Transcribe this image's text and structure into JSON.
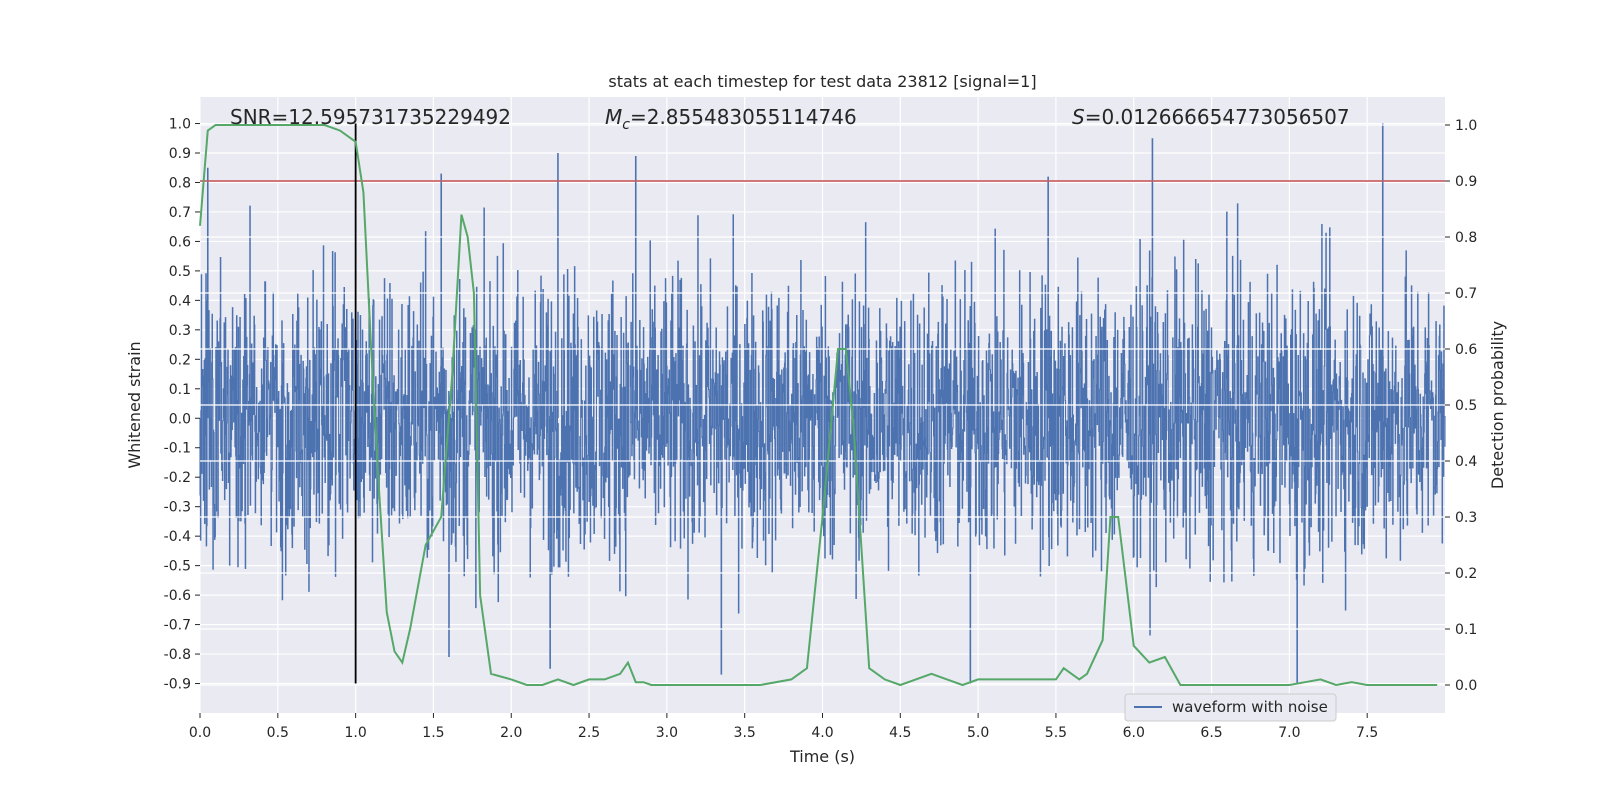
{
  "chart_data": {
    "type": "line",
    "title": "stats at each timestep for test data 23812 [signal=1]",
    "xlabel": "Time (s)",
    "ylabel_left": "Whitened strain",
    "ylabel_right": "Detection probability",
    "xlim": [
      0,
      8.0
    ],
    "ylim_left": [
      -1.0,
      1.09
    ],
    "ylim_right": [
      -0.05,
      1.05
    ],
    "x_ticks": [
      0.0,
      0.5,
      1.0,
      1.5,
      2.0,
      2.5,
      3.0,
      3.5,
      4.0,
      4.5,
      5.0,
      5.5,
      6.0,
      6.5,
      7.0,
      7.5
    ],
    "x_tick_labels": [
      "0.0",
      "0.5",
      "1.0",
      "1.5",
      "2.0",
      "2.5",
      "3.0",
      "3.5",
      "4.0",
      "4.5",
      "5.0",
      "5.5",
      "6.0",
      "6.5",
      "7.0",
      "7.5"
    ],
    "y_left_ticks": [
      1.0,
      0.9,
      0.8,
      0.7,
      0.6,
      0.5,
      0.4,
      0.3,
      0.2,
      0.1,
      0.0,
      -0.1,
      -0.2,
      -0.3,
      -0.4,
      -0.5,
      -0.6,
      -0.7,
      -0.8,
      -0.9
    ],
    "y_left_tick_labels": [
      "1.0",
      "0.9",
      "0.8",
      "0.7",
      "0.6",
      "0.5",
      "0.4",
      "0.3",
      "0.2",
      "0.1",
      "0.0",
      "-0.1",
      "-0.2",
      "-0.3",
      "-0.4",
      "-0.5",
      "-0.6",
      "-0.7",
      "-0.8",
      "-0.9"
    ],
    "y_right_ticks": [
      1.0,
      0.9,
      0.8,
      0.7,
      0.6,
      0.5,
      0.4,
      0.3,
      0.2,
      0.1,
      0.0
    ],
    "y_right_tick_labels": [
      "1.0",
      "0.9",
      "0.8",
      "0.7",
      "0.6",
      "0.5",
      "0.4",
      "0.3",
      "0.2",
      "0.1",
      "0.0"
    ],
    "annotations": {
      "snr": "SNR=12.595731735229492",
      "mc_symbol": "M",
      "mc_sub": "c",
      "mc_value": "=2.855483055114746",
      "s_symbol": "S",
      "s_value": "=0.012666654773056507"
    },
    "threshold": {
      "axis": "right",
      "value": 0.9,
      "color": "#c44e52"
    },
    "marker_line": {
      "x": 1.0,
      "y_from": -0.9,
      "y_to": 1.0,
      "color": "#000000"
    },
    "legend": {
      "label": "waveform with noise",
      "position": "lower-right"
    },
    "series": [
      {
        "name": "waveform with noise",
        "axis": "left",
        "color": "#4c72b0",
        "kind": "noise",
        "typical_amplitude": [
          -0.45,
          0.45
        ],
        "extremes": [
          {
            "x": 0.05,
            "y": 0.85
          },
          {
            "x": 1.55,
            "y": 0.83
          },
          {
            "x": 2.3,
            "y": 0.9
          },
          {
            "x": 2.8,
            "y": 0.89
          },
          {
            "x": 5.45,
            "y": 0.82
          },
          {
            "x": 6.12,
            "y": 0.95
          },
          {
            "x": 7.6,
            "y": 1.0
          },
          {
            "x": 1.6,
            "y": -0.81
          },
          {
            "x": 3.35,
            "y": -0.87
          },
          {
            "x": 4.95,
            "y": -0.9
          },
          {
            "x": 7.05,
            "y": -0.9
          },
          {
            "x": 2.25,
            "y": -0.85
          }
        ]
      },
      {
        "name": "Detection probability",
        "axis": "right",
        "color": "#55a868",
        "x": [
          0.0,
          0.05,
          0.1,
          0.2,
          0.3,
          0.4,
          0.5,
          0.6,
          0.7,
          0.8,
          0.9,
          0.95,
          1.0,
          1.05,
          1.1,
          1.15,
          1.2,
          1.25,
          1.3,
          1.35,
          1.45,
          1.55,
          1.62,
          1.68,
          1.72,
          1.76,
          1.8,
          1.87,
          2.0,
          2.1,
          2.2,
          2.3,
          2.4,
          2.5,
          2.6,
          2.7,
          2.75,
          2.8,
          2.85,
          2.9,
          3.0,
          3.2,
          3.4,
          3.6,
          3.8,
          3.9,
          4.0,
          4.05,
          4.1,
          4.15,
          4.2,
          4.3,
          4.4,
          4.5,
          4.6,
          4.7,
          4.8,
          4.9,
          5.0,
          5.2,
          5.4,
          5.5,
          5.55,
          5.6,
          5.65,
          5.7,
          5.8,
          5.85,
          5.9,
          6.0,
          6.1,
          6.2,
          6.3,
          6.4,
          6.6,
          6.8,
          7.0,
          7.1,
          7.2,
          7.3,
          7.4,
          7.5,
          7.6,
          7.8,
          7.95
        ],
        "values": [
          0.82,
          0.99,
          1.0,
          1.0,
          1.0,
          1.0,
          1.0,
          1.0,
          1.0,
          1.0,
          0.99,
          0.98,
          0.97,
          0.88,
          0.6,
          0.35,
          0.13,
          0.06,
          0.04,
          0.1,
          0.25,
          0.3,
          0.55,
          0.84,
          0.8,
          0.7,
          0.16,
          0.02,
          0.01,
          0.0,
          0.0,
          0.01,
          0.0,
          0.01,
          0.01,
          0.02,
          0.04,
          0.005,
          0.005,
          0.0,
          0.0,
          0.0,
          0.0,
          0.0,
          0.01,
          0.03,
          0.3,
          0.45,
          0.6,
          0.6,
          0.46,
          0.03,
          0.01,
          0.0,
          0.01,
          0.02,
          0.01,
          0.0,
          0.01,
          0.01,
          0.01,
          0.01,
          0.03,
          0.02,
          0.01,
          0.02,
          0.08,
          0.3,
          0.3,
          0.07,
          0.04,
          0.05,
          0.0,
          0.0,
          0.0,
          0.0,
          0.0,
          0.005,
          0.01,
          0.0,
          0.005,
          0.0,
          0.0,
          0.0,
          0.0
        ]
      }
    ]
  }
}
